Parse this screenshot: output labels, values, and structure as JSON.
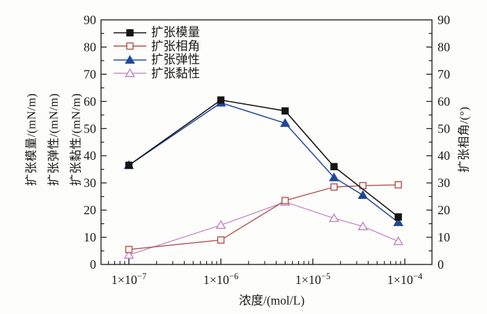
{
  "chart_data": {
    "type": "line",
    "title": "",
    "x_scale": "log",
    "xlabel": "浓度/(mol/L)",
    "left_axis_labels": [
      "扩张模量/(mN/m)",
      "扩张弹性/(mN/m)",
      "扩张黏性/(mN/m)"
    ],
    "right_axis_label": "扩张相角/(°)",
    "ylim": [
      0,
      90
    ],
    "y_ticks": [
      0,
      10,
      20,
      30,
      40,
      50,
      60,
      70,
      80,
      90
    ],
    "y_minor_step": 5,
    "xlim_exp": [
      -7.3,
      -3.7
    ],
    "x_ticks": [
      {
        "exp": -7,
        "base": "1×10",
        "sup": "−7"
      },
      {
        "exp": -6,
        "base": "1×10",
        "sup": "−6"
      },
      {
        "exp": -5,
        "base": "1×10",
        "sup": "−5"
      },
      {
        "exp": -4,
        "base": "1×10",
        "sup": "−4"
      }
    ],
    "grid": false,
    "legend_position": "top-left-inside",
    "series": [
      {
        "key": "series-modulus",
        "name": "扩张模量",
        "axis": "left",
        "color": "#151515",
        "marker": "square-filled",
        "marker_fill": "#151515",
        "line_width": 1.6,
        "x": [
          1e-07,
          1e-06,
          5e-06,
          1.7e-05,
          8.5e-05
        ],
        "y": [
          36.5,
          60.5,
          56.5,
          36,
          17.5
        ]
      },
      {
        "key": "series-phase-angle",
        "name": "扩张相角",
        "axis": "right",
        "color": "#b0504c",
        "marker": "square-open",
        "marker_fill": "#fdf5f4",
        "line_width": 1.4,
        "x": [
          1e-07,
          1e-06,
          5e-06,
          1.7e-05,
          3.5e-05,
          8.5e-05
        ],
        "y": [
          5.5,
          9,
          23.5,
          28.5,
          29,
          29.3
        ]
      },
      {
        "key": "series-elasticity",
        "name": "扩张弹性",
        "axis": "left",
        "color": "#2b4c9c",
        "marker": "triangle-filled",
        "marker_fill": "#1d4796",
        "line_width": 1.6,
        "x": [
          1e-07,
          1e-06,
          5e-06,
          1.7e-05,
          3.5e-05,
          8.5e-05
        ],
        "y": [
          36.5,
          59.5,
          52,
          32,
          25.5,
          15.5
        ]
      },
      {
        "key": "series-viscosity",
        "name": "扩张黏性",
        "axis": "left",
        "color": "#bc7fbc",
        "marker": "triangle-open",
        "marker_fill": "#faf2fa",
        "line_width": 1.2,
        "x": [
          1e-07,
          1e-06,
          5e-06,
          1.7e-05,
          3.5e-05,
          8.5e-05
        ],
        "y": [
          3.5,
          14.5,
          23,
          17,
          14,
          8.5
        ]
      }
    ],
    "draw_order": [
      3,
      1,
      2,
      0
    ]
  }
}
